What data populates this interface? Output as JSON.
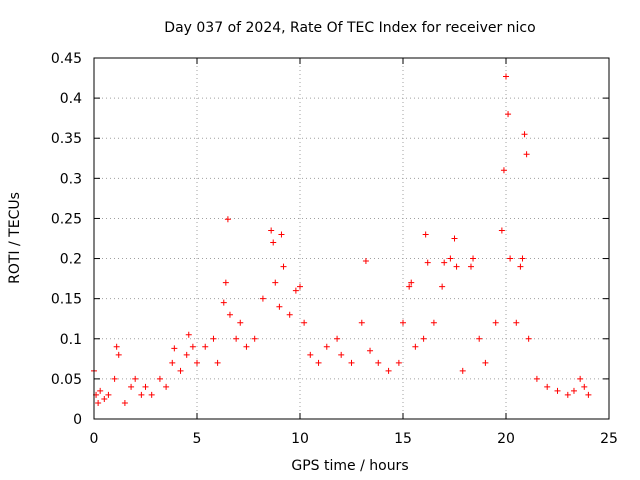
{
  "chart_data": {
    "type": "scatter",
    "title": "Day 037 of 2024, Rate Of TEC Index for receiver nico",
    "xlabel": "GPS time / hours",
    "ylabel": "ROTI / TECUs",
    "xlim": [
      0,
      25
    ],
    "ylim": [
      0,
      0.45
    ],
    "x_ticks": [
      0,
      5,
      10,
      15,
      20,
      25
    ],
    "x_tick_labels": [
      "0",
      "5",
      "10",
      "15",
      "20",
      "25"
    ],
    "y_ticks": [
      0,
      0.05,
      0.1,
      0.15,
      0.2,
      0.25,
      0.3,
      0.35,
      0.4,
      0.45
    ],
    "y_tick_labels": [
      "0",
      "0.05",
      "0.1",
      "0.15",
      "0.2",
      "0.25",
      "0.3",
      "0.35",
      "0.4",
      "0.45"
    ],
    "grid": true,
    "marker": "+",
    "series": [
      {
        "name": "ROTI",
        "color": "#ff0000",
        "x": [
          0.0,
          0.1,
          0.2,
          0.3,
          0.5,
          0.7,
          1.0,
          1.1,
          1.2,
          1.5,
          1.8,
          2.0,
          2.3,
          2.5,
          2.8,
          3.2,
          3.5,
          3.8,
          3.9,
          4.2,
          4.5,
          4.6,
          4.8,
          5.0,
          5.4,
          5.8,
          6.0,
          6.3,
          6.4,
          6.5,
          6.6,
          6.9,
          7.1,
          7.4,
          7.8,
          8.2,
          8.6,
          8.7,
          8.8,
          9.0,
          9.1,
          9.2,
          9.5,
          9.8,
          10.0,
          10.2,
          10.5,
          10.9,
          11.3,
          11.8,
          12.0,
          12.5,
          13.0,
          13.2,
          13.4,
          13.8,
          14.3,
          14.8,
          15.0,
          15.3,
          15.4,
          15.6,
          16.0,
          16.1,
          16.2,
          16.5,
          16.9,
          17.0,
          17.3,
          17.5,
          17.6,
          17.9,
          18.3,
          18.4,
          18.7,
          19.0,
          19.5,
          19.8,
          19.9,
          20.0,
          20.1,
          20.2,
          20.5,
          20.7,
          20.8,
          20.9,
          21.0,
          21.1,
          21.5,
          22.0,
          22.5,
          23.0,
          23.3,
          23.6,
          23.8,
          24.0
        ],
        "y": [
          0.06,
          0.03,
          0.02,
          0.035,
          0.025,
          0.03,
          0.05,
          0.09,
          0.08,
          0.02,
          0.04,
          0.05,
          0.03,
          0.04,
          0.03,
          0.05,
          0.04,
          0.07,
          0.088,
          0.06,
          0.08,
          0.105,
          0.09,
          0.07,
          0.09,
          0.1,
          0.07,
          0.145,
          0.17,
          0.249,
          0.13,
          0.1,
          0.12,
          0.09,
          0.1,
          0.15,
          0.235,
          0.22,
          0.17,
          0.14,
          0.23,
          0.19,
          0.13,
          0.16,
          0.165,
          0.12,
          0.08,
          0.07,
          0.09,
          0.1,
          0.08,
          0.07,
          0.12,
          0.197,
          0.085,
          0.07,
          0.06,
          0.07,
          0.12,
          0.165,
          0.17,
          0.09,
          0.1,
          0.23,
          0.195,
          0.12,
          0.165,
          0.195,
          0.2,
          0.225,
          0.19,
          0.06,
          0.19,
          0.2,
          0.1,
          0.07,
          0.12,
          0.235,
          0.31,
          0.427,
          0.38,
          0.2,
          0.12,
          0.19,
          0.2,
          0.355,
          0.33,
          0.1,
          0.05,
          0.04,
          0.035,
          0.03,
          0.035,
          0.05,
          0.04,
          0.03
        ]
      }
    ]
  }
}
